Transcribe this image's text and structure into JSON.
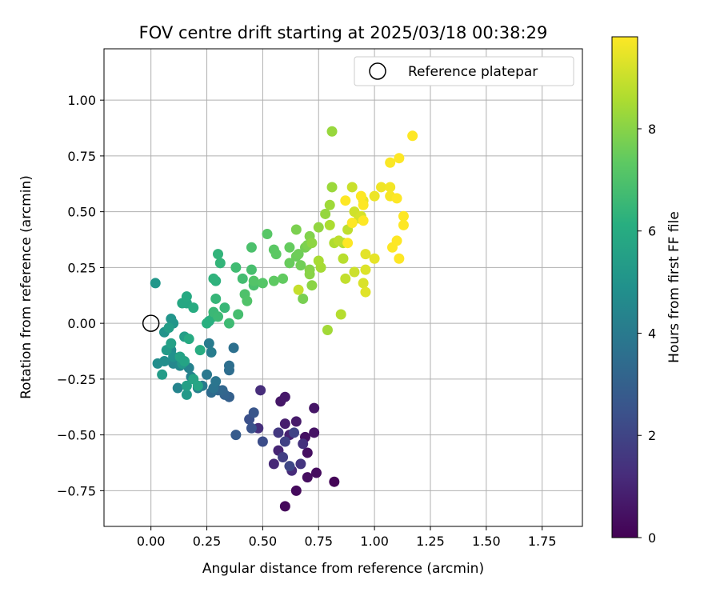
{
  "chart_data": {
    "type": "scatter",
    "title": "FOV centre drift starting at 2025/03/18 00:38:29",
    "xlabel": "Angular distance from reference (arcmin)",
    "ylabel": "Rotation from reference (arcmin)",
    "xlim": [
      -0.21,
      1.93
    ],
    "ylim": [
      -0.91,
      1.23
    ],
    "xticks": [
      0.0,
      0.25,
      0.5,
      0.75,
      1.0,
      1.25,
      1.5,
      1.75
    ],
    "xtick_labels": [
      "0.00",
      "0.25",
      "0.50",
      "0.75",
      "1.00",
      "1.25",
      "1.50",
      "1.75"
    ],
    "yticks": [
      -0.75,
      -0.5,
      -0.25,
      0.0,
      0.25,
      0.5,
      0.75,
      1.0
    ],
    "ytick_labels": [
      "−0.75",
      "−0.50",
      "−0.25",
      "0.00",
      "0.25",
      "0.50",
      "0.75",
      "1.00"
    ],
    "grid": true,
    "legend": {
      "label": "Reference platepar",
      "placement": "upper right",
      "marker": "open circle"
    },
    "reference_point": {
      "x": 0.0,
      "y": 0.0
    },
    "colorbar": {
      "label": "Hours from first FF file",
      "colormap": "viridis",
      "range": [
        0,
        9.8
      ],
      "ticks": [
        0,
        2,
        4,
        6,
        8
      ],
      "tick_labels": [
        "0",
        "2",
        "4",
        "6",
        "8"
      ]
    },
    "columns": [
      "x",
      "y",
      "hours"
    ],
    "points": [
      [
        0.82,
        -0.71,
        0.1
      ],
      [
        0.6,
        -0.82,
        0.2
      ],
      [
        0.65,
        -0.75,
        0.25
      ],
      [
        0.74,
        -0.67,
        0.3
      ],
      [
        0.7,
        -0.69,
        0.35
      ],
      [
        0.7,
        -0.58,
        0.4
      ],
      [
        0.69,
        -0.51,
        0.45
      ],
      [
        0.73,
        -0.49,
        0.5
      ],
      [
        0.73,
        -0.38,
        0.55
      ],
      [
        0.58,
        -0.35,
        0.6
      ],
      [
        0.6,
        -0.33,
        0.65
      ],
      [
        0.65,
        -0.44,
        0.7
      ],
      [
        0.6,
        -0.45,
        0.8
      ],
      [
        0.62,
        -0.5,
        0.9
      ],
      [
        0.57,
        -0.57,
        1.0
      ],
      [
        0.55,
        -0.63,
        1.1
      ],
      [
        0.63,
        -0.66,
        1.2
      ],
      [
        0.49,
        -0.3,
        1.25
      ],
      [
        0.48,
        -0.47,
        1.3
      ],
      [
        0.68,
        -0.54,
        1.4
      ],
      [
        0.67,
        -0.63,
        1.5
      ],
      [
        0.57,
        -0.49,
        1.6
      ],
      [
        0.59,
        -0.6,
        1.8
      ],
      [
        0.6,
        -0.53,
        1.9
      ],
      [
        0.64,
        -0.49,
        2.0
      ],
      [
        0.62,
        -0.64,
        2.1
      ],
      [
        0.5,
        -0.53,
        2.3
      ],
      [
        0.44,
        -0.43,
        2.4
      ],
      [
        0.45,
        -0.47,
        2.5
      ],
      [
        0.46,
        -0.4,
        2.6
      ],
      [
        0.38,
        -0.5,
        2.8
      ],
      [
        0.35,
        -0.33,
        3.0
      ],
      [
        0.33,
        -0.32,
        3.1
      ],
      [
        0.32,
        -0.3,
        3.2
      ],
      [
        0.3,
        -0.3,
        3.3
      ],
      [
        0.27,
        -0.31,
        3.4
      ],
      [
        0.35,
        -0.21,
        3.5
      ],
      [
        0.35,
        -0.19,
        3.55
      ],
      [
        0.37,
        -0.11,
        3.6
      ],
      [
        0.28,
        -0.29,
        3.7
      ],
      [
        0.29,
        -0.26,
        3.8
      ],
      [
        0.25,
        -0.23,
        3.9
      ],
      [
        0.23,
        -0.28,
        4.0
      ],
      [
        0.26,
        -0.09,
        4.05
      ],
      [
        0.27,
        -0.13,
        4.1
      ],
      [
        0.21,
        -0.29,
        4.2
      ],
      [
        0.17,
        -0.2,
        4.3
      ],
      [
        0.18,
        -0.24,
        4.35
      ],
      [
        0.12,
        -0.29,
        4.4
      ],
      [
        0.1,
        -0.18,
        4.5
      ],
      [
        0.13,
        -0.19,
        4.6
      ],
      [
        0.09,
        -0.12,
        4.7
      ],
      [
        0.03,
        -0.18,
        4.75
      ],
      [
        0.06,
        -0.17,
        4.8
      ],
      [
        0.1,
        -0.15,
        4.9
      ],
      [
        0.06,
        -0.04,
        5.0
      ],
      [
        0.09,
        0.02,
        5.05
      ],
      [
        0.1,
        0.0,
        5.1
      ],
      [
        0.02,
        0.18,
        5.15
      ],
      [
        0.14,
        -0.18,
        5.2
      ],
      [
        0.16,
        -0.32,
        5.25
      ],
      [
        0.07,
        -0.12,
        5.3
      ],
      [
        0.05,
        -0.23,
        5.35
      ],
      [
        0.08,
        -0.02,
        5.4
      ],
      [
        0.15,
        -0.06,
        5.45
      ],
      [
        0.16,
        -0.28,
        5.5
      ],
      [
        0.09,
        -0.09,
        5.55
      ],
      [
        0.13,
        -0.15,
        5.6
      ],
      [
        0.15,
        -0.17,
        5.65
      ],
      [
        0.19,
        -0.25,
        5.7
      ],
      [
        0.21,
        -0.28,
        5.75
      ],
      [
        0.16,
        0.09,
        5.8
      ],
      [
        0.14,
        0.09,
        5.85
      ],
      [
        0.16,
        0.12,
        5.9
      ],
      [
        0.17,
        -0.07,
        5.95
      ],
      [
        0.19,
        0.07,
        6.0
      ],
      [
        0.22,
        -0.12,
        6.05
      ],
      [
        0.26,
        0.01,
        6.1
      ],
      [
        0.25,
        0.0,
        6.15
      ],
      [
        0.28,
        0.03,
        6.2
      ],
      [
        0.29,
        0.19,
        6.25
      ],
      [
        0.28,
        0.2,
        6.3
      ],
      [
        0.3,
        0.31,
        6.35
      ],
      [
        0.31,
        0.27,
        6.4
      ],
      [
        0.29,
        0.11,
        6.45
      ],
      [
        0.33,
        0.07,
        6.5
      ],
      [
        0.28,
        0.05,
        6.55
      ],
      [
        0.3,
        0.03,
        6.6
      ],
      [
        0.35,
        0.0,
        6.65
      ],
      [
        0.38,
        0.25,
        6.7
      ],
      [
        0.41,
        0.2,
        6.75
      ],
      [
        0.39,
        0.04,
        6.8
      ],
      [
        0.45,
        0.24,
        6.85
      ],
      [
        0.46,
        0.17,
        6.9
      ],
      [
        0.45,
        0.34,
        6.95
      ],
      [
        0.42,
        0.13,
        7.0
      ],
      [
        0.43,
        0.1,
        7.05
      ],
      [
        0.46,
        0.19,
        7.1
      ],
      [
        0.5,
        0.18,
        7.15
      ],
      [
        0.52,
        0.4,
        7.2
      ],
      [
        0.55,
        0.33,
        7.25
      ],
      [
        0.56,
        0.31,
        7.3
      ],
      [
        0.55,
        0.19,
        7.35
      ],
      [
        0.59,
        0.2,
        7.4
      ],
      [
        0.62,
        0.34,
        7.45
      ],
      [
        0.62,
        0.27,
        7.5
      ],
      [
        0.65,
        0.3,
        7.55
      ],
      [
        0.66,
        0.31,
        7.6
      ],
      [
        0.67,
        0.26,
        7.65
      ],
      [
        0.69,
        0.34,
        7.7
      ],
      [
        0.68,
        0.11,
        7.75
      ],
      [
        0.65,
        0.42,
        7.8
      ],
      [
        0.7,
        0.35,
        7.85
      ],
      [
        0.71,
        0.39,
        7.9
      ],
      [
        0.71,
        0.24,
        7.95
      ],
      [
        0.71,
        0.22,
        8.0
      ],
      [
        0.72,
        0.17,
        8.05
      ],
      [
        0.72,
        0.36,
        8.1
      ],
      [
        0.75,
        0.43,
        8.15
      ],
      [
        0.78,
        0.49,
        8.2
      ],
      [
        0.81,
        0.86,
        8.25
      ],
      [
        0.81,
        0.61,
        8.3
      ],
      [
        0.8,
        0.53,
        8.35
      ],
      [
        0.79,
        -0.03,
        8.4
      ],
      [
        0.76,
        0.25,
        8.45
      ],
      [
        0.75,
        0.28,
        8.5
      ],
      [
        0.8,
        0.44,
        8.55
      ],
      [
        0.82,
        0.36,
        8.6
      ],
      [
        0.86,
        0.36,
        8.65
      ],
      [
        0.85,
        0.04,
        8.7
      ],
      [
        0.86,
        0.29,
        8.75
      ],
      [
        0.84,
        0.37,
        8.8
      ],
      [
        0.88,
        0.42,
        8.85
      ],
      [
        0.87,
        0.2,
        8.9
      ],
      [
        0.66,
        0.15,
        8.95
      ],
      [
        0.9,
        0.61,
        9.0
      ],
      [
        0.91,
        0.23,
        9.05
      ],
      [
        0.91,
        0.5,
        9.1
      ],
      [
        0.93,
        0.47,
        9.15
      ],
      [
        0.94,
        0.48,
        9.2
      ],
      [
        0.95,
        0.18,
        9.25
      ],
      [
        0.96,
        0.24,
        9.3
      ],
      [
        0.96,
        0.14,
        9.35
      ],
      [
        0.96,
        0.31,
        9.4
      ],
      [
        1.0,
        0.29,
        9.45
      ],
      [
        0.95,
        0.55,
        9.5
      ],
      [
        1.0,
        0.57,
        9.55
      ],
      [
        1.03,
        0.61,
        9.6
      ],
      [
        1.07,
        0.61,
        9.65
      ],
      [
        1.07,
        0.57,
        9.7
      ],
      [
        1.07,
        0.72,
        9.75
      ],
      [
        1.08,
        0.34,
        9.78
      ],
      [
        1.1,
        0.37,
        9.8
      ],
      [
        1.1,
        0.56,
        9.8
      ],
      [
        1.11,
        0.74,
        9.8
      ],
      [
        1.11,
        0.29,
        9.8
      ],
      [
        1.13,
        0.48,
        9.8
      ],
      [
        1.13,
        0.44,
        9.8
      ],
      [
        1.17,
        0.84,
        9.8
      ],
      [
        0.87,
        0.55,
        9.8
      ],
      [
        0.88,
        0.36,
        9.8
      ],
      [
        0.94,
        0.57,
        9.8
      ],
      [
        0.95,
        0.53,
        9.8
      ],
      [
        0.95,
        0.46,
        9.8
      ],
      [
        0.9,
        0.45,
        9.8
      ]
    ]
  }
}
